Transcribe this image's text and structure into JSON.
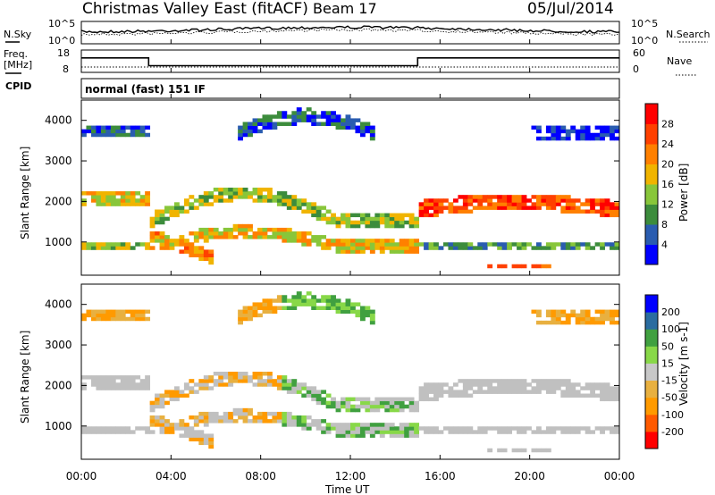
{
  "header": {
    "station": "Christmas Valley East (fitACF)",
    "beam": "Beam 17",
    "date": "05/Jul/2014"
  },
  "panels": {
    "nsky_label": "N.Sky",
    "nsearch_label": "N.Search",
    "freq_label_1": "Freq.",
    "freq_label_2": "[MHz]",
    "nave_label": "Nave",
    "cpid_label": "CPID",
    "cpid_text": "normal (fast) 151 IF",
    "x_axis_title": "Time UT"
  },
  "colors": {
    "power_scale": [
      "#0000ff",
      "#2a5cb0",
      "#3c8c3c",
      "#88c63a",
      "#f0b400",
      "#ff8000",
      "#ff4000",
      "#ff0000"
    ],
    "velocity_scale": [
      "#ff0000",
      "#ff5a00",
      "#ff9a00",
      "#e8b040",
      "#c8c8c8",
      "#88d848",
      "#40a040",
      "#2a6ca0",
      "#0000ff"
    ],
    "ground_scatter": "#c0c0c0"
  },
  "chart_data": [
    {
      "type": "line",
      "name": "noise",
      "x": [
        "00:00",
        "04:00",
        "08:00",
        "12:00",
        "16:00",
        "20:00",
        "00:00"
      ],
      "y_ticks_left": [
        "10^5",
        "10^0"
      ],
      "y_ticks_right": [
        "10^5",
        "10^0"
      ]
    },
    {
      "type": "line",
      "name": "frequency",
      "x_ticks": [
        "00:00",
        "04:00",
        "08:00",
        "12:00",
        "16:00",
        "20:00",
        "00:00"
      ],
      "y_ticks_left": [
        "18",
        "8"
      ],
      "y_ticks_right": [
        "60",
        "0"
      ],
      "freq_segments": [
        {
          "start_h": 0,
          "end_h": 3,
          "mhz": 14.5
        },
        {
          "start_h": 3,
          "end_h": 15,
          "mhz": 11.0
        },
        {
          "start_h": 15,
          "end_h": 24,
          "mhz": 14.5
        }
      ]
    },
    {
      "type": "heatmap",
      "name": "power",
      "ylabel": "Slant Range [km]",
      "ylim": [
        180,
        4500
      ],
      "xlim_hours": [
        0,
        24
      ],
      "y_ticks": [
        "1000",
        "2000",
        "3000",
        "4000"
      ],
      "colorbar_title": "Power [dB]",
      "colorbar_ticks": [
        "4",
        "8",
        "12",
        "16",
        "20",
        "24",
        "28"
      ]
    },
    {
      "type": "heatmap",
      "name": "velocity",
      "ylabel": "Slant Range [km]",
      "ylim": [
        180,
        4500
      ],
      "xlim_hours": [
        0,
        24
      ],
      "y_ticks": [
        "1000",
        "2000",
        "3000",
        "4000"
      ],
      "colorbar_title": "Velocity [m s-1]",
      "colorbar_ticks": [
        "200",
        "100",
        "50",
        "15",
        "-15",
        "-50",
        "-100",
        "-200"
      ],
      "x_ticks": [
        "00:00",
        "04:00",
        "08:00",
        "12:00",
        "16:00",
        "20:00",
        "00:00"
      ]
    }
  ]
}
